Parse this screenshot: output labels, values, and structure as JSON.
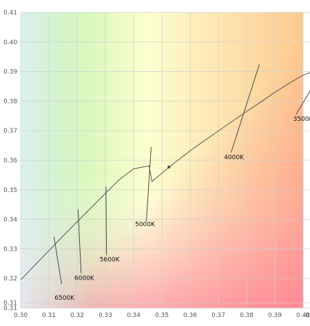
{
  "chart_data": {
    "type": "line",
    "title": "",
    "xlabel": "",
    "ylabel": "",
    "xlim": [
      0.3,
      0.405
    ],
    "ylim": [
      0.31,
      0.41
    ],
    "grid": true,
    "x_ticks": [
      {
        "value": 0.3,
        "label": "0.30"
      },
      {
        "value": 0.31,
        "label": "0.31"
      },
      {
        "value": 0.32,
        "label": "0.32"
      },
      {
        "value": 0.33,
        "label": "0.33"
      },
      {
        "value": 0.34,
        "label": "0.34"
      },
      {
        "value": 0.35,
        "label": "0.35"
      },
      {
        "value": 0.36,
        "label": "0.36"
      },
      {
        "value": 0.37,
        "label": "0.37"
      },
      {
        "value": 0.38,
        "label": "0.38"
      },
      {
        "value": 0.39,
        "label": "0.39"
      },
      {
        "value": 0.4,
        "label": "0.40"
      },
      {
        "value": 0.4032,
        "label": "0.40"
      }
    ],
    "y_ticks": [
      {
        "value": 0.31,
        "label": "0.31"
      },
      {
        "value": 0.3118,
        "label": "0.31"
      },
      {
        "value": 0.32,
        "label": "0.32"
      },
      {
        "value": 0.33,
        "label": "0.33"
      },
      {
        "value": 0.34,
        "label": "0.34"
      },
      {
        "value": 0.35,
        "label": "0.35"
      },
      {
        "value": 0.36,
        "label": "0.36"
      },
      {
        "value": 0.37,
        "label": "0.37"
      },
      {
        "value": 0.38,
        "label": "0.38"
      },
      {
        "value": 0.39,
        "label": "0.39"
      },
      {
        "value": 0.4,
        "label": "0.40"
      },
      {
        "value": 0.41,
        "label": "0.41"
      }
    ],
    "series": [
      {
        "x": [
          0.3,
          0.305,
          0.31,
          0.315,
          0.32,
          0.325,
          0.33,
          0.335,
          0.34,
          0.3455,
          0.3465,
          0.35,
          0.355,
          0.36,
          0.365,
          0.37,
          0.375,
          0.38,
          0.385,
          0.39,
          0.395,
          0.4,
          0.405
        ],
        "y": [
          0.3195,
          0.3245,
          0.3294,
          0.3344,
          0.3392,
          0.344,
          0.3488,
          0.3535,
          0.3571,
          0.3581,
          0.3528,
          0.3556,
          0.3595,
          0.3632,
          0.3666,
          0.3699,
          0.3732,
          0.3765,
          0.3797,
          0.383,
          0.386,
          0.3888,
          0.3905
        ]
      }
    ],
    "isotherms": [
      {
        "label": "6500K",
        "x1": 0.3118,
        "y1": 0.3341,
        "x2": 0.3145,
        "y2": 0.3181,
        "lx": 0.312,
        "ly": 0.3128
      },
      {
        "label": "6000K",
        "x1": 0.3203,
        "y1": 0.3434,
        "x2": 0.3214,
        "y2": 0.3218,
        "lx": 0.319,
        "ly": 0.3195
      },
      {
        "label": "5600K",
        "x1": 0.3302,
        "y1": 0.3511,
        "x2": 0.3304,
        "y2": 0.3279,
        "lx": 0.328,
        "ly": 0.3258
      },
      {
        "label": "5000K",
        "x1": 0.3462,
        "y1": 0.3645,
        "x2": 0.3445,
        "y2": 0.3393,
        "lx": 0.3405,
        "ly": 0.3377
      },
      {
        "label": "4000K",
        "x1": 0.3845,
        "y1": 0.3924,
        "x2": 0.3745,
        "y2": 0.3626,
        "lx": 0.372,
        "ly": 0.3603
      },
      {
        "label": "3500K",
        "x1": 0.405,
        "y1": 0.3875,
        "x2": 0.3975,
        "y2": 0.3755,
        "lx": 0.3965,
        "ly": 0.3733
      }
    ],
    "point": {
      "x": 0.3525,
      "y": 0.3577
    }
  }
}
